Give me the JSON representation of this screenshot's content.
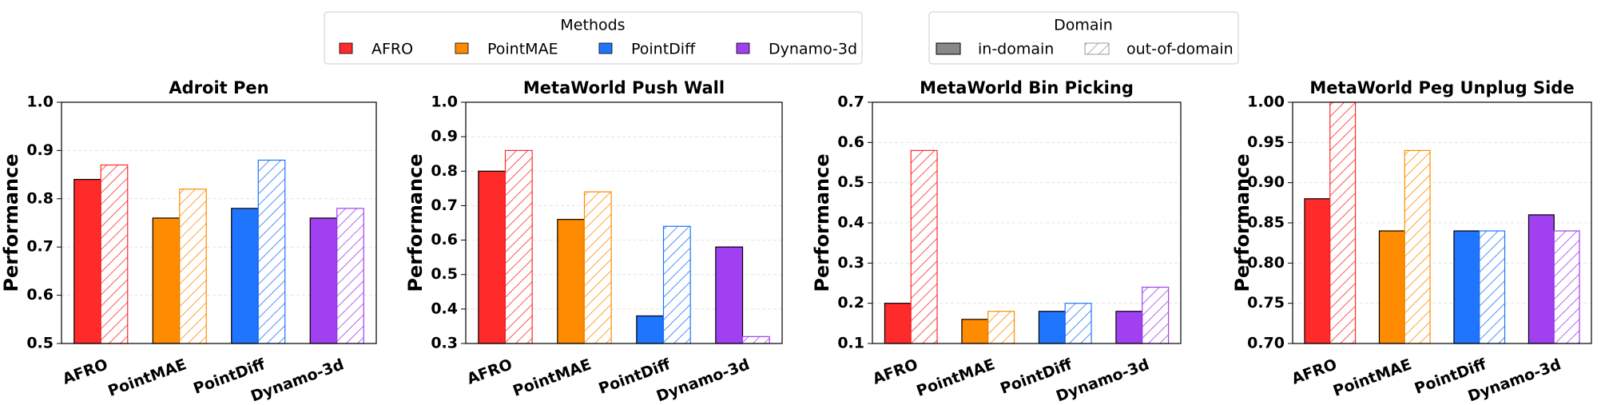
{
  "legend": {
    "methods": {
      "title": "Methods",
      "entries": [
        {
          "name": "AFRO",
          "color": "#ff2a2a"
        },
        {
          "name": "PointMAE",
          "color": "#ff8c00"
        },
        {
          "name": "PointDiff",
          "color": "#1f75fe"
        },
        {
          "name": "Dynamo-3d",
          "color": "#a040f0"
        }
      ]
    },
    "domain": {
      "title": "Domain"
    }
  },
  "chart_data": [
    {
      "type": "bar",
      "title": "Adroit Pen",
      "ylabel": "Performance",
      "categories": [
        "AFRO",
        "PointMAE",
        "PointDiff",
        "Dynamo-3d"
      ],
      "series": [
        {
          "name": "in-domain",
          "hatch": false,
          "values": [
            0.84,
            0.76,
            0.78,
            0.76
          ]
        },
        {
          "name": "out-of-domain",
          "hatch": true,
          "values": [
            0.87,
            0.82,
            0.88,
            0.78
          ]
        }
      ],
      "ylim": [
        0.5,
        1.0
      ],
      "yticks": [
        0.5,
        0.6,
        0.7,
        0.8,
        0.9,
        {
          "value": 1.0,
          "label": "1.0"
        }
      ],
      "grid": true
    },
    {
      "type": "bar",
      "title": "MetaWorld Push Wall",
      "ylabel": "Performance",
      "categories": [
        "AFRO",
        "PointMAE",
        "PointDiff",
        "Dynamo-3d"
      ],
      "series": [
        {
          "name": "in-domain",
          "hatch": false,
          "values": [
            0.8,
            0.66,
            0.38,
            0.58
          ]
        },
        {
          "name": "out-of-domain",
          "hatch": true,
          "values": [
            0.86,
            0.74,
            0.64,
            0.32
          ]
        }
      ],
      "ylim": [
        0.3,
        1.0
      ],
      "yticks": [
        0.3,
        0.4,
        0.5,
        0.6,
        0.7,
        0.8,
        0.9,
        {
          "value": 1.0,
          "label": "1.0"
        }
      ],
      "grid": true
    },
    {
      "type": "bar",
      "title": "MetaWorld Bin Picking",
      "ylabel": "Performance",
      "categories": [
        "AFRO",
        "PointMAE",
        "PointDiff",
        "Dynamo-3d"
      ],
      "series": [
        {
          "name": "in-domain",
          "hatch": false,
          "values": [
            0.2,
            0.16,
            0.18,
            0.18
          ]
        },
        {
          "name": "out-of-domain",
          "hatch": true,
          "values": [
            0.58,
            0.18,
            0.2,
            0.24
          ]
        }
      ],
      "ylim": [
        0.1,
        0.7
      ],
      "yticks": [
        0.1,
        0.2,
        0.3,
        0.4,
        0.5,
        0.6,
        0.7
      ],
      "grid": true
    },
    {
      "type": "bar",
      "title": "MetaWorld Peg Unplug Side",
      "ylabel": "Performance",
      "categories": [
        "AFRO",
        "PointMAE",
        "PointDiff",
        "Dynamo-3d"
      ],
      "series": [
        {
          "name": "in-domain",
          "hatch": false,
          "values": [
            0.88,
            0.84,
            0.84,
            0.86
          ]
        },
        {
          "name": "out-of-domain",
          "hatch": true,
          "values": [
            1.0,
            0.94,
            0.84,
            0.84
          ]
        }
      ],
      "ylim": [
        0.7,
        1.0
      ],
      "yticks": [
        {
          "value": 0.7,
          "label": "0.70"
        },
        0.75,
        {
          "value": 0.8,
          "label": "0.80"
        },
        0.85,
        {
          "value": 0.9,
          "label": "0.90"
        },
        0.95,
        {
          "value": 1.0,
          "label": "1.00"
        }
      ],
      "grid": true
    }
  ]
}
